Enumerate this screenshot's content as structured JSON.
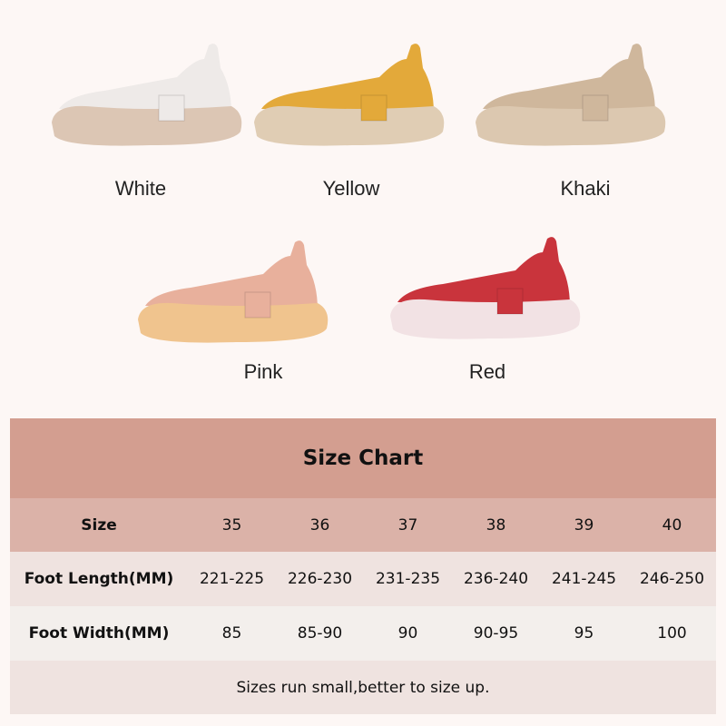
{
  "products": [
    {
      "label": "White",
      "upper": "#eeeae8",
      "sole": "#dcc6b4"
    },
    {
      "label": "Yellow",
      "upper": "#e3a93a",
      "sole": "#e0cdb4"
    },
    {
      "label": "Khaki",
      "upper": "#cfb79c",
      "sole": "#dcc8b0"
    },
    {
      "label": "Pink",
      "upper": "#e8b09c",
      "sole": "#f0c48e"
    },
    {
      "label": "Red",
      "upper": "#c9343c",
      "sole": "#f2e2e4"
    }
  ],
  "size_chart": {
    "title": "Size Chart",
    "size_header": "Size",
    "sizes": [
      "35",
      "36",
      "37",
      "38",
      "39",
      "40"
    ],
    "length_header": "Foot Length(MM)",
    "lengths": [
      "221-225",
      "226-230",
      "231-235",
      "236-240",
      "241-245",
      "246-250"
    ],
    "width_header": "Foot Width(MM)",
    "widths": [
      "85",
      "85-90",
      "90",
      "90-95",
      "95",
      "100"
    ],
    "note": "Sizes run small,better to size up."
  }
}
